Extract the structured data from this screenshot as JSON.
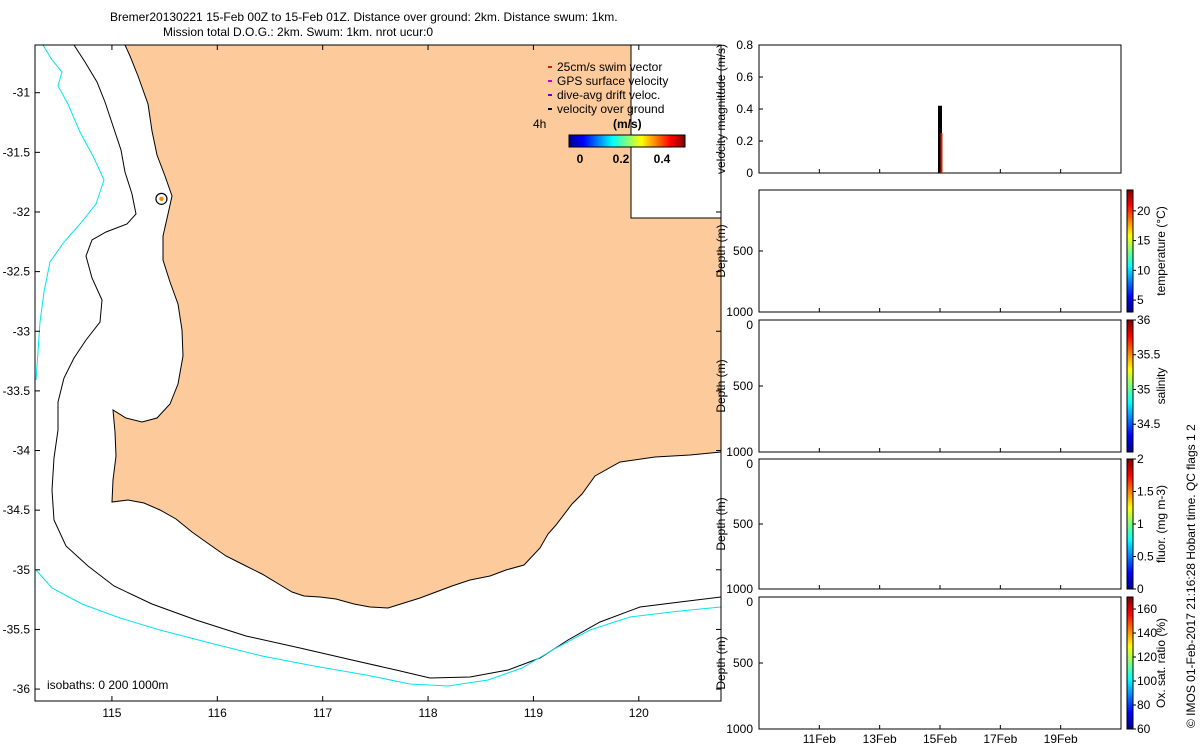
{
  "title": {
    "line1": "Bremer20130221 15-Feb 00Z to 15-Feb 01Z. Distance over ground: 2km. Distance swum: 1km.",
    "line2": "Mission total D.O.G.: 2km. Swum: 1km. nrot ucur:0"
  },
  "colors": {
    "land": "#FDCB9B",
    "isobath_200": "#000000",
    "isobath_1000": "#00E5EE",
    "swim_vector": "#CC2200",
    "gps_velocity": "#CC00CC",
    "drift_velocity": "#6600CC",
    "velocity_over_ground": "#000000"
  },
  "legend": {
    "items": [
      {
        "label": "25cm/s swim vector",
        "color": "#CC2200"
      },
      {
        "label": "GPS surface velocity",
        "color": "#CC00CC"
      },
      {
        "label": "dive-avg drift veloc.",
        "color": "#6600CC"
      },
      {
        "label": "velocity over ground",
        "color": "#000000"
      }
    ],
    "interval_label": "4h",
    "colorbar_title": "(m/s)",
    "colorbar_ticks": [
      "0",
      "0.2",
      "0.4"
    ]
  },
  "isobaths_label": "isobaths: 0   200  1000m",
  "watermark": "© IMOS 01-Feb-2017 21:16:28 Hobart time. QC flags 1  2",
  "chart_data": [
    {
      "type": "map",
      "x_ticks": [
        "115",
        "116",
        "117",
        "118",
        "119",
        "120"
      ],
      "y_ticks": [
        "-31",
        "-31.5",
        "-32",
        "-32.5",
        "-33",
        "-33.5",
        "-34",
        "-34.5",
        "-35",
        "-35.5",
        "-36"
      ],
      "xlim": [
        114.27,
        120.78
      ],
      "ylim": [
        -36.1,
        -30.6
      ],
      "glider_position": {
        "lon": 115.47,
        "lat": -31.89
      }
    },
    {
      "type": "bar",
      "ylabel": "velocity magnitude (m/s)",
      "ylim": [
        0,
        0.8
      ],
      "y_ticks": [
        "0",
        "0.2",
        "0.4",
        "0.6",
        "0.8"
      ],
      "xlim_days": [
        9,
        21
      ],
      "bars": [
        {
          "day": 15.0,
          "value": 0.42,
          "color": "#000000"
        },
        {
          "day": 15.05,
          "value": 0.25,
          "color": "#CC2200"
        }
      ]
    },
    {
      "type": "heatmap",
      "ylabel": "Depth (m)",
      "y_ticks": [
        "500",
        "1000"
      ],
      "colorbar_label": "temperature (°C)",
      "colorbar_ticks": [
        "5",
        "10",
        "15",
        "20"
      ],
      "colorbar_range": [
        3,
        23.5
      ]
    },
    {
      "type": "heatmap",
      "ylabel": "Depth (m)",
      "y_ticks": [
        "0",
        "500",
        "1000"
      ],
      "colorbar_label": "salinity",
      "colorbar_ticks": [
        "34.5",
        "35",
        "35.5",
        "36"
      ],
      "colorbar_range": [
        34.1,
        36
      ]
    },
    {
      "type": "heatmap",
      "ylabel": "Depth (m)",
      "y_ticks": [
        "0",
        "500",
        "1000"
      ],
      "colorbar_label": "fluor. (mg m-3)",
      "colorbar_ticks": [
        "0",
        "0.5",
        "1",
        "1.5",
        "2"
      ],
      "colorbar_range": [
        0,
        2
      ]
    },
    {
      "type": "heatmap",
      "ylabel": "Depth (m)",
      "y_ticks": [
        "0",
        "500",
        "1000"
      ],
      "x_ticks": [
        "11Feb",
        "13Feb",
        "15Feb",
        "17Feb",
        "19Feb"
      ],
      "colorbar_label": "Ox. sat. ratio (%)",
      "colorbar_ticks": [
        "60",
        "80",
        "100",
        "120",
        "140",
        "160"
      ],
      "colorbar_range": [
        60,
        170
      ]
    }
  ]
}
